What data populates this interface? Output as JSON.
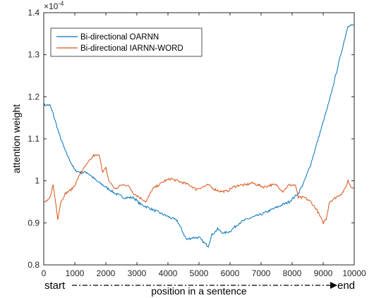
{
  "chart_data": {
    "type": "line",
    "title": "",
    "xlabel": "position in a sentence",
    "ylabel": "attention weight",
    "y_multiplier": "×10",
    "y_exponent": "-4",
    "x_start_label": "start",
    "x_end_label": "end",
    "xlim": [
      0,
      10000
    ],
    "ylim": [
      0.8,
      1.4
    ],
    "x_ticks": [
      0,
      1000,
      2000,
      3000,
      4000,
      5000,
      6000,
      7000,
      8000,
      9000,
      10000
    ],
    "x_tick_labels": [
      "0",
      "1000",
      "2000",
      "3000",
      "4000",
      "5000",
      "6000",
      "7000",
      "8000",
      "9000",
      "10000"
    ],
    "y_ticks": [
      0.8,
      0.9,
      1.0,
      1.1,
      1.2,
      1.3,
      1.4
    ],
    "y_tick_labels": [
      "0.8",
      "0.9",
      "1",
      "1.1",
      "1.2",
      "1.3",
      "1.4"
    ],
    "grid": false,
    "legend_position": "top-left",
    "series": [
      {
        "name": "Bi-directional OARNN",
        "color": "#0072BD",
        "x": [
          0,
          200,
          300,
          500,
          700,
          900,
          1000,
          1200,
          1400,
          1700,
          2000,
          2300,
          2600,
          2900,
          3100,
          3400,
          3700,
          4000,
          4300,
          4600,
          4800,
          5000,
          5200,
          5300,
          5400,
          5600,
          5800,
          6000,
          6300,
          6600,
          7000,
          7300,
          7600,
          7900,
          8200,
          8400,
          8600,
          8800,
          9000,
          9200,
          9400,
          9600,
          9800,
          10000
        ],
        "y": [
          1.18,
          1.18,
          1.16,
          1.11,
          1.07,
          1.04,
          1.025,
          1.02,
          1.02,
          1.0,
          0.985,
          0.97,
          0.96,
          0.96,
          0.945,
          0.935,
          0.925,
          0.915,
          0.905,
          0.86,
          0.865,
          0.865,
          0.85,
          0.845,
          0.87,
          0.885,
          0.875,
          0.88,
          0.9,
          0.91,
          0.92,
          0.93,
          0.94,
          0.95,
          0.97,
          1.0,
          1.04,
          1.09,
          1.14,
          1.19,
          1.25,
          1.31,
          1.37,
          1.37
        ]
      },
      {
        "name": "Bi-directional IARNN-WORD",
        "color": "#D95319",
        "x": [
          0,
          100,
          200,
          300,
          400,
          450,
          550,
          700,
          900,
          1000,
          1200,
          1400,
          1600,
          1800,
          1900,
          2000,
          2100,
          2300,
          2500,
          2700,
          2900,
          3100,
          3300,
          3500,
          3700,
          3900,
          4100,
          4300,
          4500,
          4700,
          4900,
          5100,
          5300,
          5500,
          5700,
          5900,
          6100,
          6300,
          6500,
          6700,
          6900,
          7100,
          7300,
          7500,
          7700,
          7900,
          8100,
          8200,
          8400,
          8600,
          8800,
          9000,
          9100,
          9200,
          9400,
          9600,
          9700,
          9800,
          9900,
          10000
        ],
        "y": [
          0.95,
          0.95,
          0.96,
          0.99,
          0.94,
          0.91,
          0.95,
          0.97,
          0.98,
          0.99,
          1.02,
          1.04,
          1.06,
          1.06,
          1.02,
          1.03,
          1.0,
          0.98,
          0.99,
          0.99,
          0.97,
          0.96,
          0.95,
          0.98,
          0.99,
          1.0,
          1.005,
          1.0,
          0.995,
          0.99,
          0.98,
          0.985,
          0.99,
          0.98,
          0.975,
          0.975,
          0.985,
          0.99,
          0.99,
          0.995,
          0.99,
          0.985,
          0.99,
          0.99,
          0.975,
          0.99,
          0.99,
          0.96,
          0.96,
          0.95,
          0.93,
          0.9,
          0.91,
          0.95,
          0.96,
          0.97,
          0.98,
          1.0,
          0.985,
          0.985
        ]
      }
    ]
  }
}
